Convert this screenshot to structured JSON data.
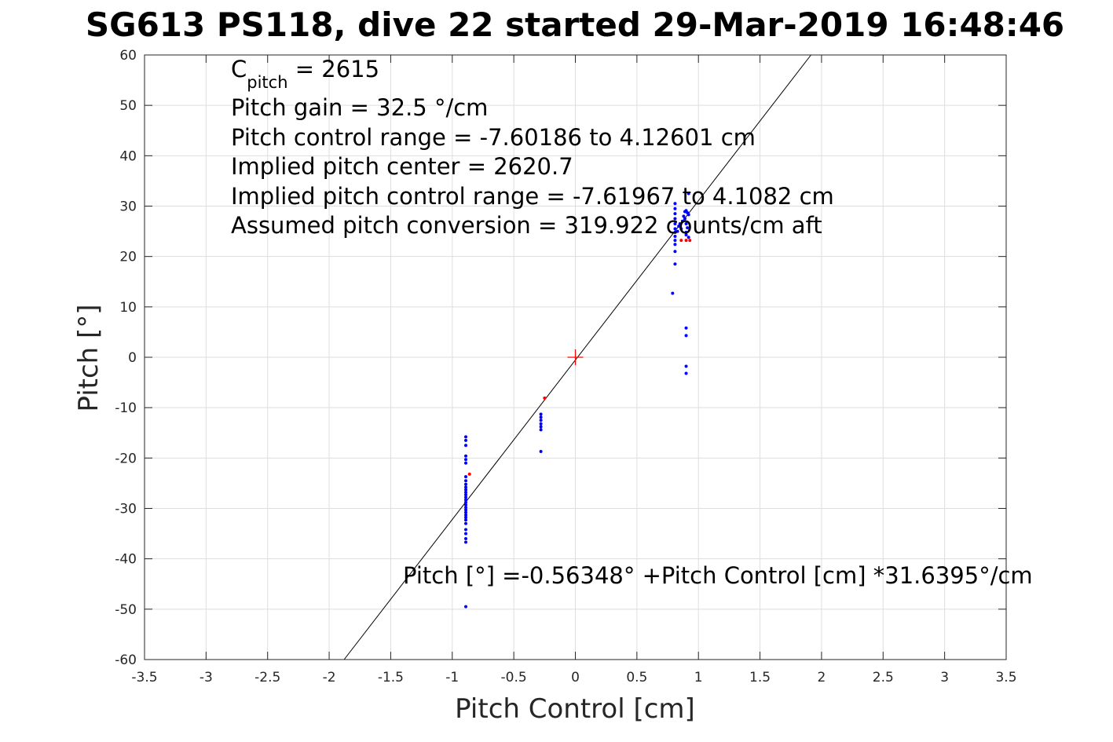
{
  "chart_data": {
    "type": "scatter",
    "title": "SG613 PS118, dive 22 started 29-Mar-2019 16:48:46",
    "xlabel": "Pitch Control [cm]",
    "ylabel": "Pitch [°]",
    "xlim": [
      -3.5,
      3.5
    ],
    "ylim": [
      -60,
      60
    ],
    "xticks": [
      -3.5,
      -3,
      -2.5,
      -2,
      -1.5,
      -1,
      -0.5,
      0,
      0.5,
      1,
      1.5,
      2,
      2.5,
      3,
      3.5
    ],
    "xtick_labels": [
      "-3.5",
      "-3",
      "-2.5",
      "-2",
      "-1.5",
      "-1",
      "-0.5",
      "0",
      "0.5",
      "1",
      "1.5",
      "2",
      "2.5",
      "3",
      "3.5"
    ],
    "yticks": [
      -60,
      -50,
      -40,
      -30,
      -20,
      -10,
      0,
      10,
      20,
      30,
      40,
      50,
      60
    ],
    "ytick_labels": [
      "-60",
      "-50",
      "-40",
      "-30",
      "-20",
      "-10",
      "0",
      "10",
      "20",
      "30",
      "40",
      "50",
      "60"
    ],
    "grid": true,
    "annotations": {
      "c_pitch_base": "C",
      "c_pitch_sub": "pitch",
      "c_pitch_rest": " = 2615",
      "gain": "Pitch gain = 32.5 °/cm",
      "control_range": "Pitch control range = -7.60186 to 4.12601 cm",
      "implied_center": "Implied pitch center = 2620.7",
      "implied_range": "Implied pitch control range = -7.61967 to 4.1082 cm",
      "conversion": "Assumed pitch conversion = 319.922 counts/cm aft",
      "fit_equation": "Pitch [°] =-0.56348° +Pitch Control [cm] *31.6395°/cm"
    },
    "fit_line": {
      "intercept": -0.56348,
      "slope": 31.6395,
      "color": "#000000"
    },
    "center_marker": {
      "x": 0,
      "y": 0,
      "color": "#ff0000",
      "marker": "+"
    },
    "series": [
      {
        "color": "#0000ff",
        "points": [
          [
            -0.89,
            -15.8
          ],
          [
            -0.89,
            -16.5
          ],
          [
            -0.89,
            -17.5
          ],
          [
            -0.89,
            -19.6
          ],
          [
            -0.89,
            -20.3
          ],
          [
            -0.89,
            -21.0
          ],
          [
            -0.89,
            -23.7
          ],
          [
            -0.89,
            -24.5
          ],
          [
            -0.89,
            -25.2
          ],
          [
            -0.89,
            -25.8
          ],
          [
            -0.89,
            -26.3
          ],
          [
            -0.89,
            -26.8
          ],
          [
            -0.89,
            -27.3
          ],
          [
            -0.89,
            -27.8
          ],
          [
            -0.89,
            -28.3
          ],
          [
            -0.89,
            -28.8
          ],
          [
            -0.89,
            -29.3
          ],
          [
            -0.89,
            -29.8
          ],
          [
            -0.89,
            -30.3
          ],
          [
            -0.89,
            -30.8
          ],
          [
            -0.89,
            -31.3
          ],
          [
            -0.89,
            -31.8
          ],
          [
            -0.89,
            -32.3
          ],
          [
            -0.89,
            -33.0
          ],
          [
            -0.89,
            -34.2
          ],
          [
            -0.89,
            -35.0
          ],
          [
            -0.89,
            -36.0
          ],
          [
            -0.89,
            -36.7
          ],
          [
            -0.89,
            -49.5
          ],
          [
            -0.28,
            -11.3
          ],
          [
            -0.28,
            -11.9
          ],
          [
            -0.28,
            -12.5
          ],
          [
            -0.28,
            -13.2
          ],
          [
            -0.28,
            -13.8
          ],
          [
            -0.28,
            -14.4
          ],
          [
            -0.28,
            -18.7
          ],
          [
            0.81,
            30.5
          ],
          [
            0.81,
            29.5
          ],
          [
            0.81,
            28.5
          ],
          [
            0.81,
            27.5
          ],
          [
            0.81,
            26.5
          ],
          [
            0.81,
            25.5
          ],
          [
            0.81,
            24.8
          ],
          [
            0.81,
            24.0
          ],
          [
            0.81,
            23.2
          ],
          [
            0.81,
            22.4
          ],
          [
            0.81,
            21.0
          ],
          [
            0.81,
            18.5
          ],
          [
            0.79,
            12.7
          ],
          [
            0.83,
            25.0
          ],
          [
            0.84,
            26.0
          ],
          [
            0.85,
            26.5
          ],
          [
            0.86,
            25.5
          ],
          [
            0.87,
            27.0
          ],
          [
            0.88,
            28.0
          ],
          [
            0.89,
            28.9
          ],
          [
            0.9,
            29.1
          ],
          [
            0.91,
            28.7
          ],
          [
            0.92,
            28.3
          ],
          [
            0.89,
            27.5
          ],
          [
            0.9,
            26.5
          ],
          [
            0.91,
            25.7
          ],
          [
            0.9,
            24.8
          ],
          [
            0.9,
            24.3
          ],
          [
            0.92,
            32.5
          ],
          [
            0.92,
            23.8
          ],
          [
            0.9,
            5.8
          ],
          [
            0.9,
            4.3
          ],
          [
            0.9,
            -1.8
          ],
          [
            0.9,
            -3.2
          ]
        ]
      },
      {
        "color": "#ff0000",
        "points": [
          [
            -0.86,
            -23.2
          ],
          [
            -0.25,
            -8.1
          ],
          [
            0.86,
            23.2
          ],
          [
            0.9,
            23.2
          ],
          [
            0.93,
            23.2
          ]
        ]
      }
    ]
  }
}
